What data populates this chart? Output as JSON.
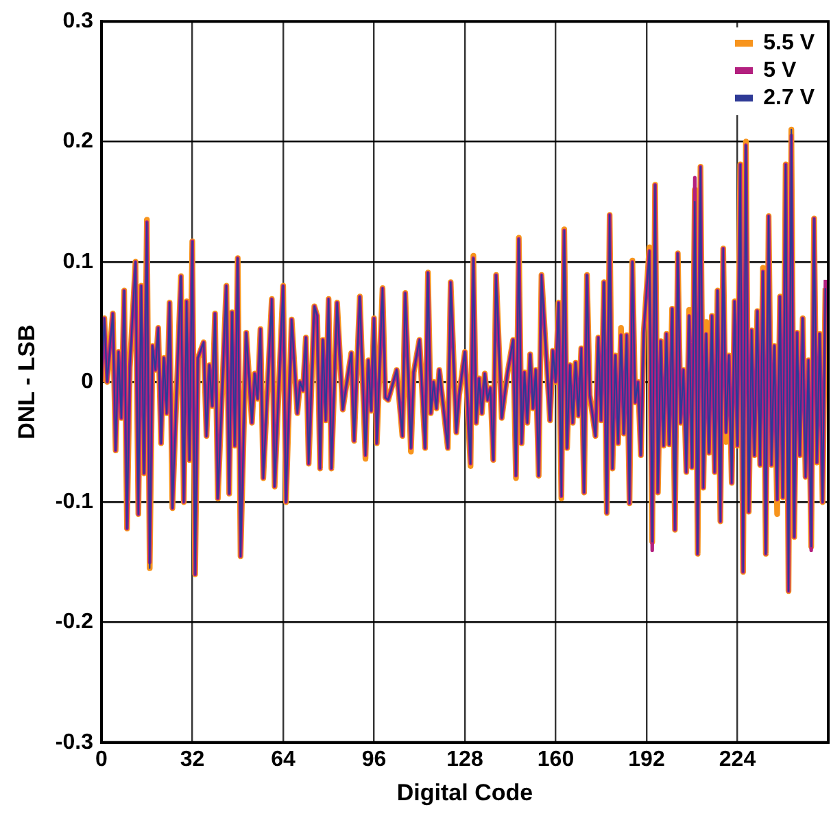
{
  "chart_data": {
    "type": "line",
    "xlabel": "Digital Code",
    "ylabel": "DNL - LSB",
    "xlim": [
      0,
      256
    ],
    "xticks": [
      0,
      32,
      64,
      96,
      128,
      160,
      192,
      224
    ],
    "ylim": [
      -0.3,
      0.3
    ],
    "yticks": [
      -0.3,
      -0.2,
      -0.1,
      0,
      0.1,
      0.2,
      0.3
    ],
    "grid": true,
    "legend": "top right",
    "marker": "none",
    "line_style": "solid",
    "x": [
      0,
      1,
      2,
      4,
      5,
      6,
      7,
      8,
      9,
      10,
      12,
      13,
      14,
      15,
      16,
      17,
      18,
      19,
      20,
      21,
      22,
      23,
      24,
      25,
      28,
      29,
      30,
      31,
      32,
      33,
      34,
      36,
      37,
      38,
      39,
      40,
      41,
      44,
      45,
      46,
      47,
      48,
      49,
      51,
      53,
      54,
      55,
      56,
      57,
      60,
      61,
      64,
      65,
      67,
      69,
      70,
      71,
      72,
      73,
      75,
      76,
      77,
      78,
      79,
      80,
      81,
      83,
      85,
      86,
      88,
      89,
      91,
      93,
      94,
      95,
      96,
      97,
      99,
      100,
      101,
      104,
      106,
      107,
      109,
      110,
      112,
      114,
      115,
      116,
      117,
      118,
      119,
      122,
      123,
      125,
      126,
      128,
      130,
      131,
      132,
      133,
      134,
      135,
      136,
      137,
      138,
      139,
      141,
      143,
      145,
      146,
      147,
      148,
      149,
      150,
      151,
      152,
      153,
      154,
      155,
      158,
      159,
      160,
      161,
      162,
      163,
      164,
      165,
      166,
      167,
      168,
      169,
      170,
      171,
      172,
      174,
      175,
      176,
      177,
      178,
      179,
      180,
      181,
      182,
      183,
      184,
      185,
      186,
      187,
      188,
      189,
      190,
      191,
      193,
      194,
      195,
      196,
      197,
      198,
      199,
      200,
      201,
      202,
      203,
      204,
      205,
      206,
      207,
      208,
      209,
      210,
      211,
      212,
      213,
      214,
      215,
      216,
      217,
      218,
      219,
      220,
      221,
      222,
      223,
      224,
      225,
      226,
      227,
      228,
      229,
      230,
      231,
      232,
      233,
      234,
      235,
      236,
      237,
      238,
      239,
      240,
      241,
      242,
      243,
      244,
      245,
      246,
      247,
      248,
      249,
      250,
      251,
      252,
      253,
      254,
      255
    ],
    "series": [
      {
        "name": "5.5 V",
        "color": "#f7941d",
        "values": [
          0,
          0.053,
          0,
          0.057,
          -0.057,
          0.025,
          -0.03,
          0.076,
          -0.122,
          0.012,
          0.1,
          -0.11,
          0.08,
          -0.076,
          0.135,
          -0.155,
          0.03,
          0.01,
          0.045,
          -0.051,
          0.02,
          -0.026,
          0.066,
          -0.105,
          0.088,
          -0.1,
          0.067,
          -0.065,
          0.117,
          -0.16,
          0.02,
          0.033,
          -0.045,
          0.014,
          -0.02,
          0.057,
          -0.097,
          0.08,
          -0.093,
          0.058,
          -0.053,
          0.103,
          -0.145,
          0.041,
          -0.034,
          0.007,
          -0.014,
          0.044,
          -0.08,
          0.069,
          -0.087,
          0.08,
          -0.1,
          0.052,
          -0.026,
          0,
          -0.007,
          0.037,
          -0.068,
          0.063,
          0.055,
          -0.072,
          0.035,
          -0.032,
          0.069,
          -0.072,
          0.066,
          -0.023,
          -0.007,
          0.024,
          -0.049,
          0.071,
          -0.064,
          0.018,
          -0.024,
          0.053,
          -0.051,
          0.078,
          -0.013,
          -0.015,
          0.01,
          -0.045,
          0.074,
          -0.058,
          0.008,
          0.035,
          -0.055,
          0.091,
          -0.026,
          0,
          -0.022,
          0.01,
          -0.055,
          0.083,
          -0.042,
          -0.011,
          0.025,
          -0.07,
          0.105,
          -0.034,
          0.003,
          -0.026,
          0.007,
          -0.015,
          -0.005,
          -0.065,
          0.089,
          -0.03,
          0.007,
          0.035,
          -0.08,
          0.12,
          -0.051,
          0.008,
          -0.034,
          0.023,
          -0.022,
          0.01,
          -0.078,
          0.089,
          -0.032,
          0.026,
          0,
          0.066,
          -0.097,
          0.127,
          -0.055,
          0.014,
          -0.034,
          0.016,
          -0.028,
          0.028,
          -0.092,
          0.089,
          -0.011,
          -0.045,
          0.037,
          -0.032,
          0.083,
          -0.109,
          0.139,
          -0.072,
          0.022,
          -0.051,
          0.045,
          -0.043,
          0.039,
          -0.101,
          0.101,
          -0.017,
          0,
          -0.061,
          0.041,
          0.112,
          -0.133,
          0.164,
          -0.092,
          0.034,
          -0.053,
          0.04,
          -0.052,
          0.061,
          -0.123,
          0.107,
          -0.034,
          0.01,
          -0.075,
          0.06,
          -0.071,
          0.16,
          -0.143,
          0.179,
          -0.088,
          0.05,
          -0.059,
          0.055,
          -0.075,
          0.076,
          -0.116,
          0.111,
          -0.05,
          0.022,
          -0.084,
          0.067,
          -0.053,
          0.181,
          -0.158,
          0.2,
          -0.108,
          0.043,
          -0.061,
          0.059,
          -0.069,
          0.095,
          -0.143,
          0.138,
          -0.069,
          0.03,
          -0.11,
          0.071,
          -0.096,
          0.181,
          -0.174,
          0.21,
          -0.129,
          0.041,
          -0.061,
          0.053,
          -0.079,
          0.018,
          -0.137,
          0.136,
          -0.067,
          0.04,
          -0.1,
          0.078
        ]
      },
      {
        "name": "5 V",
        "color": "#b3207f",
        "values": [
          0,
          0.053,
          0,
          0.057,
          -0.057,
          0.025,
          -0.03,
          0.076,
          -0.122,
          0.012,
          0.1,
          -0.11,
          0.08,
          -0.076,
          0.133,
          -0.15,
          0.03,
          0.01,
          0.045,
          -0.051,
          0.02,
          -0.026,
          0.066,
          -0.105,
          0.088,
          -0.1,
          0.067,
          -0.065,
          0.117,
          -0.16,
          0.02,
          0.033,
          -0.045,
          0.014,
          -0.02,
          0.057,
          -0.097,
          0.08,
          -0.093,
          0.058,
          -0.053,
          0.103,
          -0.145,
          0.041,
          -0.034,
          0.007,
          -0.014,
          0.044,
          -0.08,
          0.069,
          -0.087,
          0.08,
          -0.1,
          0.052,
          -0.026,
          0,
          -0.007,
          0.037,
          -0.068,
          0.063,
          0.055,
          -0.072,
          0.035,
          -0.032,
          0.069,
          -0.072,
          0.066,
          -0.023,
          -0.007,
          0.024,
          -0.049,
          0.071,
          -0.061,
          0.018,
          -0.024,
          0.053,
          -0.051,
          0.078,
          -0.013,
          -0.015,
          0.01,
          -0.045,
          0.074,
          -0.055,
          0.008,
          0.035,
          -0.055,
          0.091,
          -0.026,
          0,
          -0.022,
          0.01,
          -0.055,
          0.083,
          -0.042,
          -0.011,
          0.025,
          -0.068,
          0.103,
          -0.034,
          0.003,
          -0.026,
          0.007,
          -0.015,
          -0.005,
          -0.065,
          0.089,
          -0.03,
          0.007,
          0.035,
          -0.078,
          0.119,
          -0.051,
          0.008,
          -0.034,
          0.023,
          -0.022,
          0.01,
          -0.078,
          0.089,
          -0.032,
          0.026,
          0,
          0.066,
          -0.095,
          0.126,
          -0.055,
          0.014,
          -0.034,
          0.016,
          -0.028,
          0.028,
          -0.092,
          0.089,
          -0.011,
          -0.045,
          0.037,
          -0.032,
          0.083,
          -0.109,
          0.139,
          -0.072,
          0.022,
          -0.051,
          0.039,
          -0.043,
          0.039,
          -0.101,
          0.1,
          -0.017,
          0,
          -0.061,
          0.041,
          0.109,
          -0.14,
          0.164,
          -0.092,
          0.034,
          -0.053,
          0.04,
          -0.052,
          0.061,
          -0.123,
          0.107,
          -0.034,
          0.01,
          -0.075,
          0.055,
          -0.071,
          0.17,
          -0.143,
          0.179,
          -0.088,
          0.04,
          -0.059,
          0.055,
          -0.075,
          0.076,
          -0.116,
          0.111,
          -0.042,
          0.022,
          -0.084,
          0.067,
          -0.053,
          0.181,
          -0.158,
          0.197,
          -0.108,
          0.043,
          -0.061,
          0.059,
          -0.069,
          0.092,
          -0.143,
          0.138,
          -0.069,
          0.03,
          -0.098,
          0.071,
          -0.096,
          0.181,
          -0.174,
          0.205,
          -0.129,
          0.041,
          -0.061,
          0.053,
          -0.079,
          0.018,
          -0.14,
          0.136,
          -0.067,
          0.04,
          -0.1,
          0.085
        ]
      },
      {
        "name": "2.7 V",
        "color": "#2e3a96",
        "values": [
          0,
          0.053,
          0,
          0.057,
          -0.057,
          0.025,
          -0.03,
          0.076,
          -0.122,
          0.012,
          0.1,
          -0.11,
          0.08,
          -0.076,
          0.133,
          -0.155,
          0.03,
          0.01,
          0.045,
          -0.051,
          0.02,
          -0.026,
          0.066,
          -0.105,
          0.088,
          -0.1,
          0.067,
          -0.065,
          0.117,
          -0.16,
          0.02,
          0.033,
          -0.045,
          0.014,
          -0.02,
          0.057,
          -0.097,
          0.08,
          -0.093,
          0.058,
          -0.053,
          0.103,
          -0.145,
          0.041,
          -0.034,
          0.007,
          -0.014,
          0.044,
          -0.08,
          0.069,
          -0.087,
          0.08,
          -0.1,
          0.052,
          -0.026,
          0,
          -0.007,
          0.037,
          -0.068,
          0.063,
          0.055,
          -0.072,
          0.035,
          -0.032,
          0.069,
          -0.072,
          0.066,
          -0.023,
          -0.007,
          0.024,
          -0.049,
          0.071,
          -0.061,
          0.018,
          -0.024,
          0.053,
          -0.051,
          0.078,
          -0.013,
          -0.015,
          0.01,
          -0.045,
          0.074,
          -0.055,
          0.008,
          0.035,
          -0.055,
          0.091,
          -0.026,
          0,
          -0.022,
          0.01,
          -0.055,
          0.083,
          -0.042,
          -0.011,
          0.025,
          -0.068,
          0.103,
          -0.034,
          0.003,
          -0.026,
          0.007,
          -0.015,
          -0.005,
          -0.065,
          0.089,
          -0.03,
          0.007,
          0.035,
          -0.078,
          0.119,
          -0.051,
          0.008,
          -0.034,
          0.023,
          -0.022,
          0.01,
          -0.078,
          0.089,
          -0.032,
          0.026,
          0,
          0.066,
          -0.095,
          0.126,
          -0.055,
          0.014,
          -0.034,
          0.016,
          -0.028,
          0.028,
          -0.092,
          0.089,
          -0.011,
          -0.045,
          0.037,
          -0.032,
          0.083,
          -0.109,
          0.139,
          -0.072,
          0.022,
          -0.051,
          0.039,
          -0.043,
          0.039,
          -0.101,
          0.1,
          -0.017,
          0,
          -0.061,
          0.041,
          0.109,
          -0.133,
          0.164,
          -0.092,
          0.034,
          -0.053,
          0.04,
          -0.052,
          0.061,
          -0.123,
          0.107,
          -0.034,
          0.01,
          -0.075,
          0.055,
          -0.071,
          0.15,
          -0.143,
          0.179,
          -0.088,
          0.04,
          -0.059,
          0.055,
          -0.075,
          0.076,
          -0.116,
          0.111,
          -0.042,
          0.022,
          -0.084,
          0.067,
          -0.053,
          0.181,
          -0.158,
          0.197,
          -0.108,
          0.043,
          -0.061,
          0.059,
          -0.069,
          0.092,
          -0.143,
          0.138,
          -0.069,
          0.03,
          -0.098,
          0.071,
          -0.096,
          0.181,
          -0.174,
          0.21,
          -0.129,
          0.041,
          -0.061,
          0.053,
          -0.079,
          0.018,
          -0.137,
          0.136,
          -0.067,
          0.04,
          -0.1,
          0.078
        ]
      }
    ]
  }
}
